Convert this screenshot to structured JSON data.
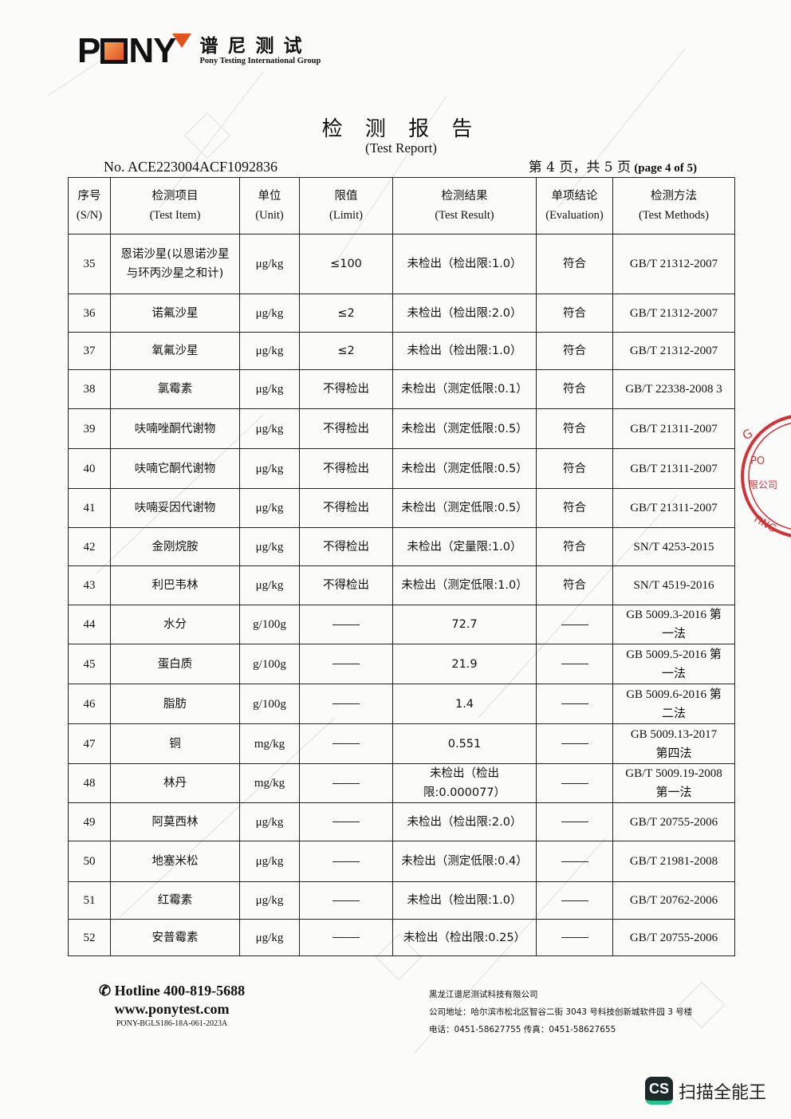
{
  "logo": {
    "brand": "PONY",
    "cn": "谱尼测试",
    "en": "Pony Testing International Group"
  },
  "title": "检 测 报 告",
  "subtitle": "(Test Report)",
  "report_no": "No. ACE223004ACF1092836",
  "page_info": {
    "cn": "第 4 页，共 5 页",
    "en": "(page 4 of 5)"
  },
  "table": {
    "headers": [
      {
        "cn": "序号",
        "en": "(S/N)"
      },
      {
        "cn": "检测项目",
        "en": "(Test Item)"
      },
      {
        "cn": "单位",
        "en": "(Unit)"
      },
      {
        "cn": "限值",
        "en": "(Limit)"
      },
      {
        "cn": "检测结果",
        "en": "(Test Result)"
      },
      {
        "cn": "单项结论",
        "en": "(Evaluation)"
      },
      {
        "cn": "检测方法",
        "en": "(Test Methods)"
      }
    ],
    "rows": [
      {
        "sn": "35",
        "item": "恩诺沙星(以恩诺沙星与环丙沙星之和计)",
        "unit": "μg/kg",
        "limit": "≤100",
        "result": "未检出（检出限:1.0）",
        "eval": "符合",
        "method": "GB/T 21312-2007"
      },
      {
        "sn": "36",
        "item": "诺氟沙星",
        "unit": "μg/kg",
        "limit": "≤2",
        "result": "未检出（检出限:2.0）",
        "eval": "符合",
        "method": "GB/T 21312-2007"
      },
      {
        "sn": "37",
        "item": "氧氟沙星",
        "unit": "μg/kg",
        "limit": "≤2",
        "result": "未检出（检出限:1.0）",
        "eval": "符合",
        "method": "GB/T 21312-2007"
      },
      {
        "sn": "38",
        "item": "氯霉素",
        "unit": "μg/kg",
        "limit": "不得检出",
        "result": "未检出（测定低限:0.1）",
        "eval": "符合",
        "method": "GB/T 22338-2008 3"
      },
      {
        "sn": "39",
        "item": "呋喃唑酮代谢物",
        "unit": "μg/kg",
        "limit": "不得检出",
        "result": "未检出（测定低限:0.5）",
        "eval": "符合",
        "method": "GB/T 21311-2007"
      },
      {
        "sn": "40",
        "item": "呋喃它酮代谢物",
        "unit": "μg/kg",
        "limit": "不得检出",
        "result": "未检出（测定低限:0.5）",
        "eval": "符合",
        "method": "GB/T 21311-2007"
      },
      {
        "sn": "41",
        "item": "呋喃妥因代谢物",
        "unit": "μg/kg",
        "limit": "不得检出",
        "result": "未检出（测定低限:0.5）",
        "eval": "符合",
        "method": "GB/T 21311-2007"
      },
      {
        "sn": "42",
        "item": "金刚烷胺",
        "unit": "μg/kg",
        "limit": "不得检出",
        "result": "未检出（定量限:1.0）",
        "eval": "符合",
        "method": "SN/T 4253-2015"
      },
      {
        "sn": "43",
        "item": "利巴韦林",
        "unit": "μg/kg",
        "limit": "不得检出",
        "result": "未检出（测定低限:1.0）",
        "eval": "符合",
        "method": "SN/T 4519-2016"
      },
      {
        "sn": "44",
        "item": "水分",
        "unit": "g/100g",
        "limit": "——",
        "result": "72.7",
        "eval": "——",
        "method": "GB 5009.3-2016 第一法"
      },
      {
        "sn": "45",
        "item": "蛋白质",
        "unit": "g/100g",
        "limit": "——",
        "result": "21.9",
        "eval": "——",
        "method": "GB 5009.5-2016 第一法"
      },
      {
        "sn": "46",
        "item": "脂肪",
        "unit": "g/100g",
        "limit": "——",
        "result": "1.4",
        "eval": "——",
        "method": "GB 5009.6-2016 第二法"
      },
      {
        "sn": "47",
        "item": "铜",
        "unit": "mg/kg",
        "limit": "——",
        "result": "0.551",
        "eval": "——",
        "method": "GB 5009.13-2017 第四法"
      },
      {
        "sn": "48",
        "item": "林丹",
        "unit": "mg/kg",
        "limit": "——",
        "result": "未检出（检出限:0.000077）",
        "eval": "——",
        "method": "GB/T 5009.19-2008 第一法"
      },
      {
        "sn": "49",
        "item": "阿莫西林",
        "unit": "μg/kg",
        "limit": "——",
        "result": "未检出（检出限:2.0）",
        "eval": "——",
        "method": "GB/T 20755-2006"
      },
      {
        "sn": "50",
        "item": "地塞米松",
        "unit": "μg/kg",
        "limit": "——",
        "result": "未检出（测定低限:0.4）",
        "eval": "——",
        "method": "GB/T 21981-2008"
      },
      {
        "sn": "51",
        "item": "红霉素",
        "unit": "μg/kg",
        "limit": "——",
        "result": "未检出（检出限:1.0）",
        "eval": "——",
        "method": "GB/T 20762-2006"
      },
      {
        "sn": "52",
        "item": "安普霉素",
        "unit": "μg/kg",
        "limit": "——",
        "result": "未检出（检出限:0.25）",
        "eval": "——",
        "method": "GB/T 20755-2006"
      }
    ]
  },
  "footer": {
    "hotline": "Hotline 400-819-5688",
    "website": "www.ponytest.com",
    "form_code": "PONY-BGLS186-18A-061-2023A",
    "company": "黑龙江谱尼测试科技有限公司",
    "address": "公司地址：哈尔滨市松北区智谷二街 3043 号科技创新城软件园 3 号楼",
    "contact": "电话：0451-58627755  传真：0451-58627655"
  },
  "scanner_badge": {
    "icon": "CS",
    "label": "扫描全能王",
    "accent": "#1fc58d"
  },
  "colors": {
    "seal": "#d0343a",
    "logo_accent": "#e2531e"
  }
}
